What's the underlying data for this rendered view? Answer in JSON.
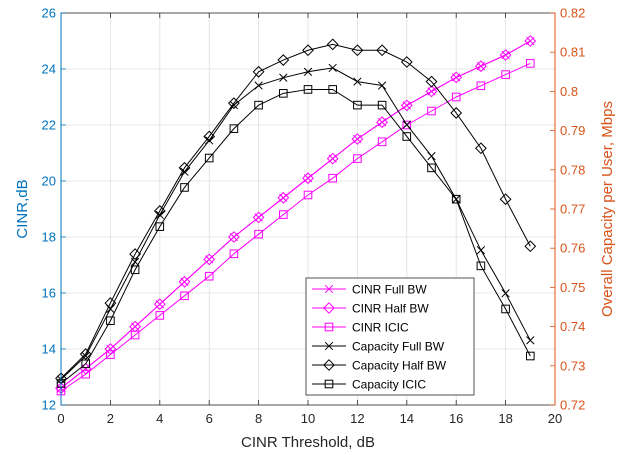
{
  "chart_data": {
    "type": "line",
    "xlabel": "CINR Threshold, dB",
    "ylabel_left": "CINR,dB",
    "ylabel_right": "Overall Capacity per User, Mbps",
    "xlim": [
      0,
      20
    ],
    "ylim_left": [
      12,
      26
    ],
    "ylim_right": [
      0.72,
      0.82
    ],
    "x_ticks": [
      "0",
      "2",
      "4",
      "6",
      "8",
      "10",
      "12",
      "14",
      "16",
      "18",
      "20"
    ],
    "y_left_ticks": [
      "12",
      "14",
      "16",
      "18",
      "20",
      "22",
      "24",
      "26"
    ],
    "y_right_ticks": [
      "0.72",
      "0.73",
      "0.74",
      "0.75",
      "0.76",
      "0.77",
      "0.78",
      "0.79",
      "0.8",
      "0.81",
      "0.82"
    ],
    "grid": true,
    "legend_position": "bottom-right",
    "colors": {
      "magenta": "#ff00ff",
      "black": "#000000",
      "left_axis": "#0072bd",
      "right_axis": "#d95319"
    },
    "x": [
      0,
      1,
      2,
      3,
      4,
      5,
      6,
      7,
      8,
      9,
      10,
      11,
      12,
      13,
      14,
      15,
      16,
      17,
      18,
      19
    ],
    "series": [
      {
        "name": "CINR Full BW",
        "axis": "left",
        "marker": "x",
        "color": "#ff00ff",
        "values": [
          12.6,
          13.3,
          14.0,
          14.8,
          15.6,
          16.4,
          17.2,
          18.0,
          18.7,
          19.4,
          20.1,
          20.8,
          21.5,
          22.1,
          22.7,
          23.2,
          23.7,
          24.1,
          24.5,
          25.0
        ]
      },
      {
        "name": "CINR Half BW",
        "axis": "left",
        "marker": "diamond",
        "color": "#ff00ff",
        "values": [
          12.6,
          13.3,
          14.0,
          14.8,
          15.6,
          16.4,
          17.2,
          18.0,
          18.7,
          19.4,
          20.1,
          20.8,
          21.5,
          22.1,
          22.7,
          23.2,
          23.7,
          24.1,
          24.5,
          25.0
        ]
      },
      {
        "name": "CINR ICIC",
        "axis": "left",
        "marker": "square",
        "color": "#ff00ff",
        "values": [
          12.5,
          13.1,
          13.8,
          14.5,
          15.2,
          15.9,
          16.6,
          17.4,
          18.1,
          18.8,
          19.5,
          20.1,
          20.8,
          21.4,
          22.0,
          22.5,
          23.0,
          23.4,
          23.8,
          24.2
        ]
      },
      {
        "name": "Capacity Full BW",
        "axis": "right",
        "marker": "x",
        "color": "#000000",
        "values": [
          0.7265,
          0.7325,
          0.7445,
          0.7565,
          0.7685,
          0.7795,
          0.7875,
          0.7965,
          0.8015,
          0.8035,
          0.805,
          0.806,
          0.8025,
          0.8015,
          0.7915,
          0.7835,
          0.7725,
          0.7595,
          0.7485,
          0.7365
        ]
      },
      {
        "name": "Capacity Half BW",
        "axis": "right",
        "marker": "diamond",
        "color": "#000000",
        "values": [
          0.7268,
          0.733,
          0.746,
          0.7585,
          0.7695,
          0.7805,
          0.7885,
          0.797,
          0.805,
          0.808,
          0.8105,
          0.812,
          0.8105,
          0.8105,
          0.8075,
          0.8025,
          0.7945,
          0.7855,
          0.7725,
          0.7605
        ]
      },
      {
        "name": "Capacity ICIC",
        "axis": "right",
        "marker": "square",
        "color": "#000000",
        "values": [
          0.7255,
          0.7305,
          0.7415,
          0.7545,
          0.7655,
          0.7755,
          0.783,
          0.7905,
          0.7965,
          0.7995,
          0.8005,
          0.8005,
          0.7965,
          0.7965,
          0.7885,
          0.7805,
          0.7725,
          0.7555,
          0.7445,
          0.7325
        ]
      }
    ]
  }
}
